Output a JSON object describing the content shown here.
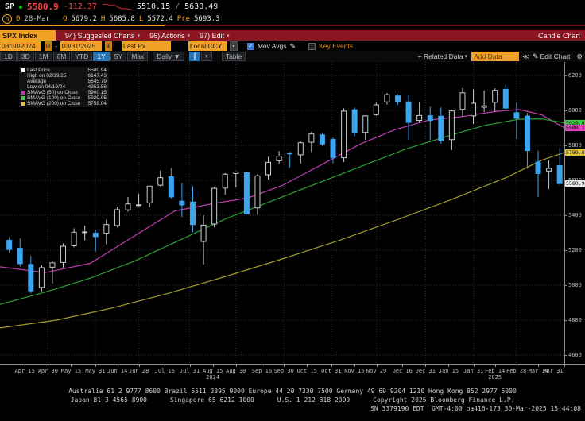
{
  "header": {
    "ticker": "SP",
    "last": "5580.9",
    "change": "-112.37",
    "range_low": "5510.15",
    "range_sep": "/",
    "range_high": "5630.49",
    "vol": "0",
    "date": "28-Mar",
    "open_label": "O",
    "open": "5679.2",
    "high_label": "H",
    "high": "5685.8",
    "low_label": "L",
    "low": "5572.4",
    "pre_label": "Pre",
    "pre": "5693.3"
  },
  "menubar": {
    "security": "SPX Index",
    "items": [
      "94) Suggested Charts",
      "96) Actions",
      "97) Edit"
    ],
    "right_label": "Candle Chart"
  },
  "controls": {
    "date_from": "03/30/2024",
    "date_to": "03/31/2025",
    "field": "Last Px",
    "currency": "Local CCY",
    "mov_avgs_label": "Mov Avgs",
    "mov_avgs_checked": true,
    "key_events_label": "Key Events",
    "key_events_checked": false
  },
  "toolbar": {
    "periods": [
      "1D",
      "3D",
      "1M",
      "6M",
      "YTD",
      "1Y",
      "5Y",
      "Max"
    ],
    "active_period": "1Y",
    "frequency": "Daily ▼",
    "table_label": "Table",
    "related_data": "+ Related Data",
    "add_data_placeholder": "Add Data",
    "edit_chart": "Edit Chart"
  },
  "legend": {
    "rows": [
      {
        "label": "Last Price",
        "value": "5580.94",
        "color": "#ffffff"
      },
      {
        "label": "High on 02/19/25",
        "value": "6147.43",
        "color": ""
      },
      {
        "label": "Average",
        "value": "5645.79",
        "color": ""
      },
      {
        "label": "Low on 04/19/24",
        "value": "4953.56",
        "color": ""
      },
      {
        "label": "SMAVG (50) on Close",
        "value": "5900.15",
        "color": "#c13bb0"
      },
      {
        "label": "SMAVG (100) on Close",
        "value": "5929.05",
        "color": "#42d142"
      },
      {
        "label": "SMAVG (200) on Close",
        "value": "5759.04",
        "color": "#e3c53c"
      }
    ]
  },
  "chart_data": {
    "type": "candlestick",
    "title": "SPX Index 1Y Candle Chart, Daily, 03/30/2024 - 03/31/2025",
    "ylim": [
      4550,
      6280
    ],
    "y_ticks": [
      6200,
      6000,
      5800,
      5600,
      5400,
      5200,
      5000,
      4800,
      4600
    ],
    "x_gridlines_f": [
      0.085,
      0.169,
      0.246,
      0.336,
      0.418,
      0.503,
      0.587,
      0.667,
      0.754,
      0.839,
      0.915,
      1.0
    ],
    "x_ticks": [
      {
        "label": "Apr 15",
        "f": 0.044
      },
      {
        "label": "Apr 30",
        "f": 0.085
      },
      {
        "label": "May 15",
        "f": 0.126
      },
      {
        "label": "May 31",
        "f": 0.169
      },
      {
        "label": "Jun 14",
        "f": 0.208
      },
      {
        "label": "Jun 28",
        "f": 0.246
      },
      {
        "label": "Jul 15",
        "f": 0.292
      },
      {
        "label": "Jul 31",
        "f": 0.336
      },
      {
        "label": "Aug 15",
        "f": 0.377,
        "year": "2024"
      },
      {
        "label": "Aug 30",
        "f": 0.418
      },
      {
        "label": "Sep 16",
        "f": 0.464
      },
      {
        "label": "Sep 30",
        "f": 0.503
      },
      {
        "label": "Oct 15",
        "f": 0.544
      },
      {
        "label": "Oct 31",
        "f": 0.587
      },
      {
        "label": "Nov 15",
        "f": 0.628
      },
      {
        "label": "Nov 29",
        "f": 0.667
      },
      {
        "label": "Dec 16",
        "f": 0.713
      },
      {
        "label": "Dec 31",
        "f": 0.754
      },
      {
        "label": "Jan 15",
        "f": 0.795
      },
      {
        "label": "Jan 31",
        "f": 0.839
      },
      {
        "label": "Feb 14",
        "f": 0.877,
        "year": "2025"
      },
      {
        "label": "Feb 28",
        "f": 0.915
      },
      {
        "label": "Mar 14",
        "f": 0.954
      },
      {
        "label": "Mar 31",
        "f": 1.0
      }
    ],
    "candles_weekly_ohlc": [
      [
        5257,
        5274,
        5184,
        5204
      ],
      [
        5211,
        5267,
        5107,
        5123
      ],
      [
        5119,
        5168,
        4954,
        4967
      ],
      [
        4987,
        5115,
        4963,
        5100
      ],
      [
        5103,
        5139,
        5011,
        5128
      ],
      [
        5130,
        5239,
        5101,
        5223
      ],
      [
        5225,
        5325,
        5217,
        5303
      ],
      [
        5305,
        5341,
        5256,
        5305
      ],
      [
        5298,
        5315,
        5192,
        5278
      ],
      [
        5297,
        5375,
        5234,
        5347
      ],
      [
        5341,
        5447,
        5331,
        5432
      ],
      [
        5431,
        5505,
        5420,
        5465
      ],
      [
        5459,
        5523,
        5451,
        5460
      ],
      [
        5471,
        5570,
        5446,
        5567
      ],
      [
        5572,
        5656,
        5565,
        5615
      ],
      [
        5621,
        5670,
        5497,
        5505
      ],
      [
        5481,
        5585,
        5390,
        5459
      ],
      [
        5476,
        5566,
        5302,
        5347
      ],
      [
        5250,
        5400,
        5119,
        5344
      ],
      [
        5350,
        5561,
        5331,
        5554
      ],
      [
        5555,
        5642,
        5517,
        5635
      ],
      [
        5639,
        5652,
        5560,
        5648
      ],
      [
        5644,
        5651,
        5403,
        5408
      ],
      [
        5442,
        5636,
        5402,
        5626
      ],
      [
        5632,
        5734,
        5604,
        5703
      ],
      [
        5712,
        5767,
        5696,
        5738
      ],
      [
        5757,
        5763,
        5674,
        5751
      ],
      [
        5746,
        5822,
        5696,
        5815
      ],
      [
        5818,
        5878,
        5762,
        5865
      ],
      [
        5860,
        5872,
        5797,
        5808
      ],
      [
        5834,
        5845,
        5697,
        5729
      ],
      [
        5729,
        6012,
        5704,
        5996
      ],
      [
        6004,
        6017,
        5853,
        5871
      ],
      [
        5874,
        5972,
        5832,
        5969
      ],
      [
        5976,
        6044,
        5969,
        6032
      ],
      [
        6049,
        6100,
        6034,
        6090
      ],
      [
        6083,
        6092,
        6033,
        6051
      ],
      [
        6049,
        6087,
        5832,
        5931
      ],
      [
        5943,
        6049,
        5932,
        5971
      ],
      [
        5970,
        6021,
        5829,
        5942
      ],
      [
        5967,
        6017,
        5809,
        5827
      ],
      [
        5833,
        6004,
        5773,
        5997
      ],
      [
        6006,
        6128,
        5962,
        6101
      ],
      [
        5969,
        6121,
        5923,
        6041
      ],
      [
        6018,
        6114,
        5990,
        6026
      ],
      [
        6046,
        6127,
        5993,
        6115
      ],
      [
        6121,
        6147,
        6008,
        6013
      ],
      [
        5987,
        6043,
        5837,
        5955
      ],
      [
        5968,
        5986,
        5666,
        5770
      ],
      [
        5705,
        5770,
        5504,
        5639
      ],
      [
        5653,
        5715,
        5551,
        5668
      ],
      [
        5684,
        5787,
        5572,
        5581
      ]
    ],
    "series": [
      {
        "name": "SMAVG (50) on Close",
        "color": "#c13bb0",
        "last": 5900.15,
        "anchors": [
          [
            0,
            5105
          ],
          [
            0.08,
            5072
          ],
          [
            0.16,
            5125
          ],
          [
            0.24,
            5285
          ],
          [
            0.31,
            5425
          ],
          [
            0.38,
            5468
          ],
          [
            0.44,
            5500
          ],
          [
            0.5,
            5570
          ],
          [
            0.57,
            5690
          ],
          [
            0.64,
            5810
          ],
          [
            0.7,
            5890
          ],
          [
            0.76,
            5945
          ],
          [
            0.82,
            5965
          ],
          [
            0.88,
            5995
          ],
          [
            0.92,
            6005
          ],
          [
            0.96,
            5975
          ],
          [
            1.0,
            5900
          ]
        ]
      },
      {
        "name": "SMAVG (100) on Close",
        "color": "#2f9e37",
        "last": 5929.05,
        "anchors": [
          [
            0,
            4890
          ],
          [
            0.08,
            4960
          ],
          [
            0.16,
            5040
          ],
          [
            0.24,
            5140
          ],
          [
            0.32,
            5260
          ],
          [
            0.4,
            5380
          ],
          [
            0.48,
            5480
          ],
          [
            0.56,
            5580
          ],
          [
            0.64,
            5680
          ],
          [
            0.72,
            5780
          ],
          [
            0.8,
            5860
          ],
          [
            0.86,
            5915
          ],
          [
            0.92,
            5950
          ],
          [
            0.96,
            5952
          ],
          [
            1.0,
            5929
          ]
        ]
      },
      {
        "name": "SMAVG (200) on Close",
        "color": "#a39b2a",
        "last": 5759.04,
        "anchors": [
          [
            0,
            4755
          ],
          [
            0.1,
            4800
          ],
          [
            0.2,
            4870
          ],
          [
            0.3,
            4955
          ],
          [
            0.4,
            5050
          ],
          [
            0.5,
            5150
          ],
          [
            0.6,
            5255
          ],
          [
            0.7,
            5370
          ],
          [
            0.8,
            5490
          ],
          [
            0.9,
            5620
          ],
          [
            0.96,
            5715
          ],
          [
            1.0,
            5759
          ]
        ]
      }
    ],
    "badges": [
      {
        "text": "5929.05",
        "value": 5929.05,
        "bg": "#42d142"
      },
      {
        "text": "5900.15",
        "value": 5900.15,
        "bg": "#e838c8"
      },
      {
        "text": "5759.04",
        "value": 5759.04,
        "bg": "#e3c53c"
      },
      {
        "text": "5580.94",
        "value": 5580.94,
        "bg": "#e8e8e8"
      }
    ],
    "up_color": "#c8cdd2",
    "down_color": "#3aa5f0"
  },
  "footer": {
    "line1": "Australia 61 2 9777 8600 Brazil 5511 2395 9000 Europe 44 20 7330 7500 Germany 49 69 9204 1210 Hong Kong 852 2977 6000",
    "line2": "Japan 81 3 4565 8900      Singapore 65 6212 1000      U.S. 1 212 318 2000      Copyright 2025 Bloomberg Finance L.P.",
    "line3": "SN 3379190 EDT  GMT-4:00 ba416-173 30-Mar-2025 15:44:08"
  }
}
